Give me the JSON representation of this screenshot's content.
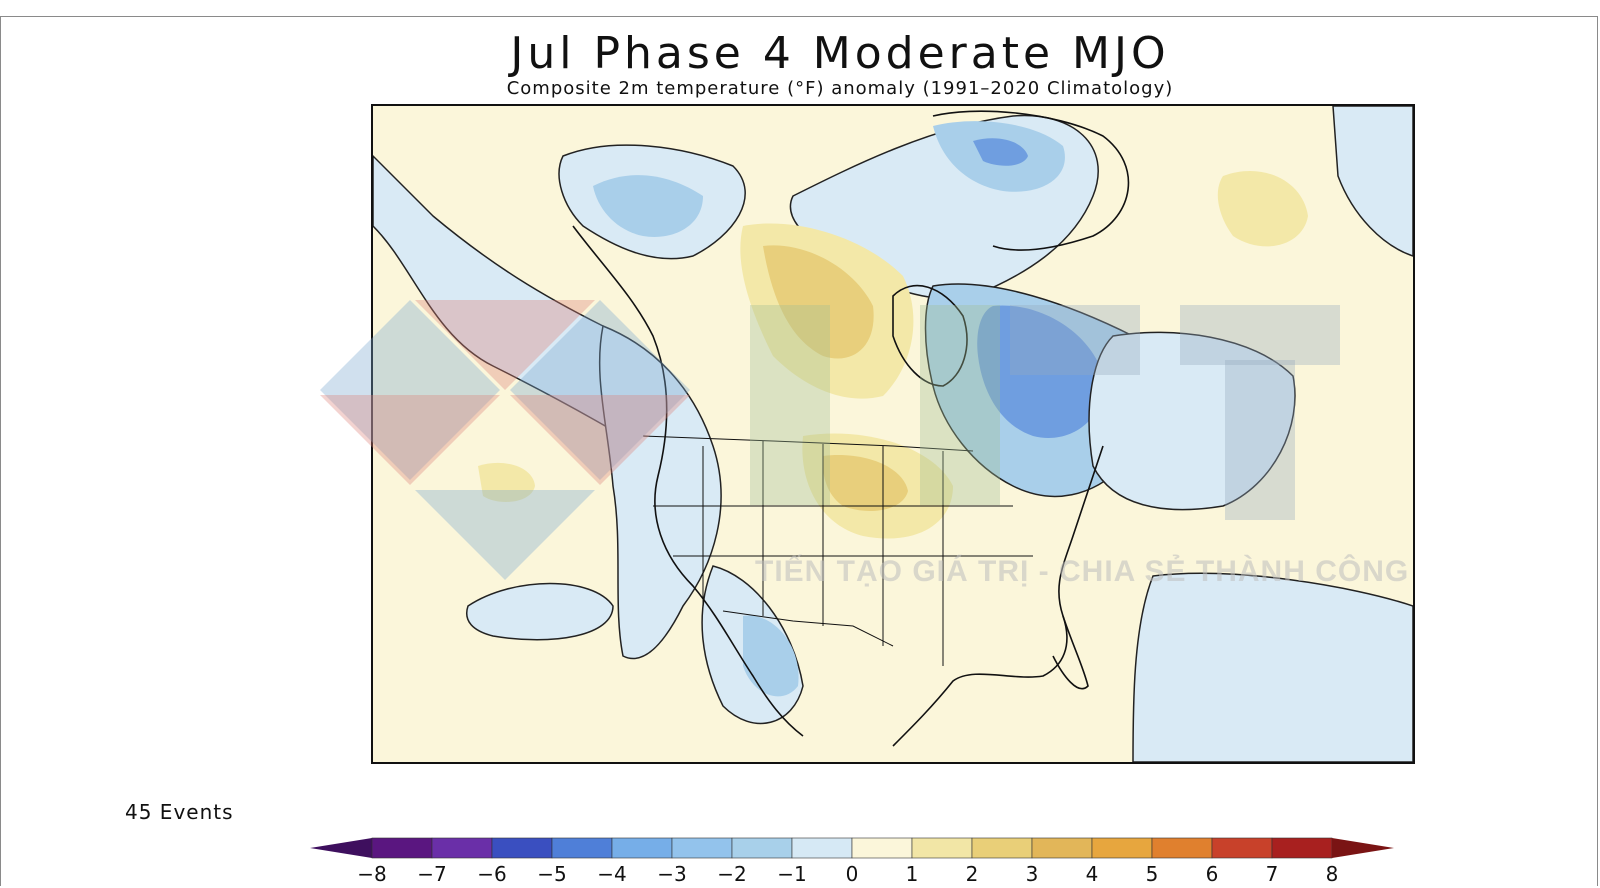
{
  "title": "Jul Phase 4 Moderate MJO",
  "subtitle": "Composite 2m temperature (°F) anomaly (1991–2020 Climatology)",
  "events_label": "45 Events",
  "watermark_text": "TIẾN TẠO GIÁ TRỊ - CHIA SẺ THÀNH CÔNG",
  "colorbar": {
    "unit": "°F",
    "ticks": [
      "-8",
      "-7",
      "-6",
      "-5",
      "-4",
      "-3",
      "-2",
      "-1",
      "0",
      "1",
      "2",
      "3",
      "4",
      "5",
      "6",
      "7",
      "8"
    ],
    "colors": [
      "#5a1680",
      "#6a2fa8",
      "#3a4fc0",
      "#4f7fd8",
      "#76aee8",
      "#93c3ec",
      "#a8d0ea",
      "#d6e9f5",
      "#fbf6da",
      "#f2e6a6",
      "#e9cf78",
      "#e2b659",
      "#e7a63e",
      "#e0802e",
      "#c8412a",
      "#a8201f"
    ],
    "under_color": "#3e0f5e",
    "over_color": "#7a1414"
  },
  "legend_anomaly_colors": {
    "light_warm": "#f3e8a8",
    "warm": "#e8cf7c",
    "light_cool": "#d9eaf5",
    "cool": "#a9cfea",
    "cold": "#6f9ee0",
    "very_cold": "#4a78d0"
  }
}
